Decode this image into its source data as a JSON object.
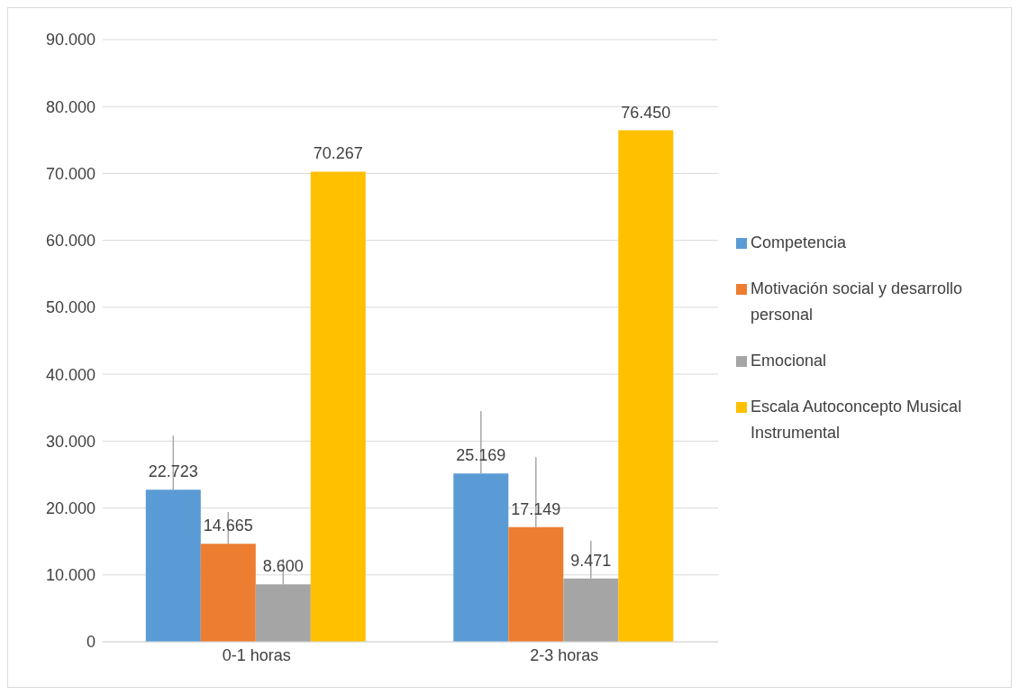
{
  "chart_data": {
    "type": "bar",
    "categories": [
      "0-1 horas",
      "2-3 horas"
    ],
    "series": [
      {
        "name": "Competencia",
        "color": "#5b9bd5",
        "values": [
          22723,
          25169
        ],
        "errors": [
          [
            22723,
            30800
          ],
          [
            25169,
            34500
          ]
        ],
        "value_labels": [
          "22.723",
          "25.169"
        ]
      },
      {
        "name": "Motivación social y desarrollo personal",
        "color": "#ed7d31",
        "values": [
          14665,
          17149
        ],
        "errors": [
          [
            14665,
            19400
          ],
          [
            17149,
            27600
          ]
        ],
        "value_labels": [
          "14.665",
          "17.149"
        ]
      },
      {
        "name": "Emocional",
        "color": "#a5a5a5",
        "values": [
          8600,
          9471
        ],
        "errors": [
          [
            8600,
            12400
          ],
          [
            9471,
            15100
          ]
        ],
        "value_labels": [
          "8.600",
          "9.471"
        ]
      },
      {
        "name": "Escala Autoconcepto Musical Instrumental",
        "color": "#ffc000",
        "values": [
          70267,
          76450
        ],
        "value_labels": [
          "70.267",
          "76.450"
        ]
      }
    ],
    "ylim": [
      0,
      90000
    ],
    "yticks": [
      0,
      {
        "value": 10000,
        "label": "10.000"
      },
      {
        "value": 20000,
        "label": "20.000"
      },
      {
        "value": 30000,
        "label": "30.000"
      },
      {
        "value": 40000,
        "label": "40.000"
      },
      {
        "value": 50000,
        "label": "50.000"
      },
      {
        "value": 60000,
        "label": "60.000"
      },
      {
        "value": 70000,
        "label": "70.000"
      },
      {
        "value": 80000,
        "label": "80.000"
      },
      {
        "value": 90000,
        "label": "90.000"
      }
    ],
    "grid": "y",
    "legend": "right"
  }
}
